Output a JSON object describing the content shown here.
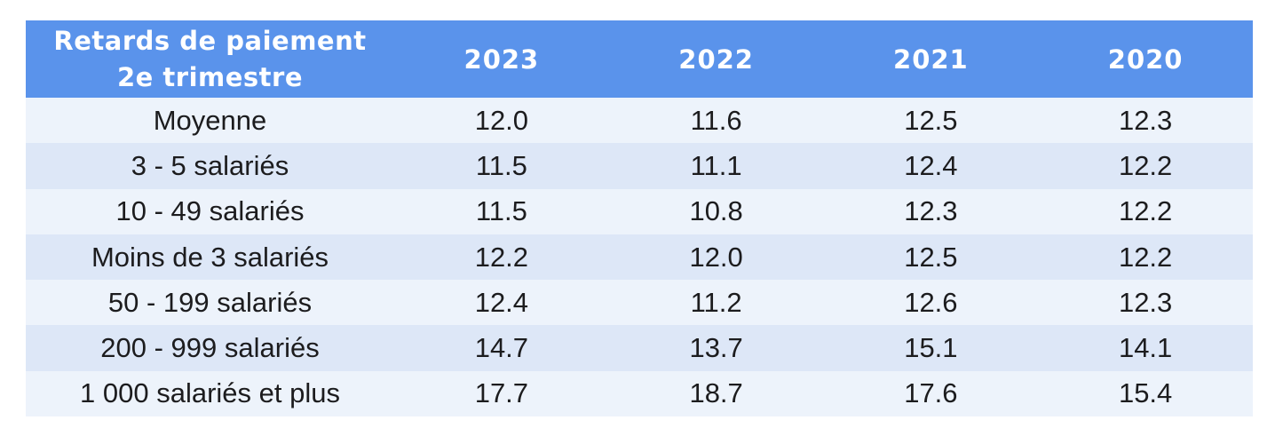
{
  "chart_data": {
    "type": "table",
    "title": "Retards de paiement 2e trimestre",
    "corner_header_line1": "Retards de paiement",
    "corner_header_line2": "2e trimestre",
    "columns": [
      "2023",
      "2022",
      "2021",
      "2020"
    ],
    "rows": [
      {
        "label": "Moyenne",
        "values": [
          "12.0",
          "11.6",
          "12.5",
          "12.3"
        ]
      },
      {
        "label": "3 - 5 salariés",
        "values": [
          "11.5",
          "11.1",
          "12.4",
          "12.2"
        ]
      },
      {
        "label": "10 - 49 salariés",
        "values": [
          "11.5",
          "10.8",
          "12.3",
          "12.2"
        ]
      },
      {
        "label": "Moins de 3 salariés",
        "values": [
          "12.2",
          "12.0",
          "12.5",
          "12.2"
        ]
      },
      {
        "label": "50 - 199 salariés",
        "values": [
          "12.4",
          "11.2",
          "12.6",
          "12.3"
        ]
      },
      {
        "label": "200 - 999 salariés",
        "values": [
          "14.7",
          "13.7",
          "15.1",
          "14.1"
        ]
      },
      {
        "label": "1 000 salariés et plus",
        "values": [
          "17.7",
          "18.7",
          "17.6",
          "15.4"
        ]
      }
    ],
    "layout": {
      "legend": "none",
      "grid": "off",
      "row_striping": true,
      "header_position": "top"
    }
  },
  "colors": {
    "header_bg": "#5A93EB",
    "header_text": "#FFFFFF",
    "row_light": "#EDF3FB",
    "row_dark": "#DDE7F7",
    "cell_text": "#1C1C1E",
    "page_bg": "#FFFFFF"
  }
}
